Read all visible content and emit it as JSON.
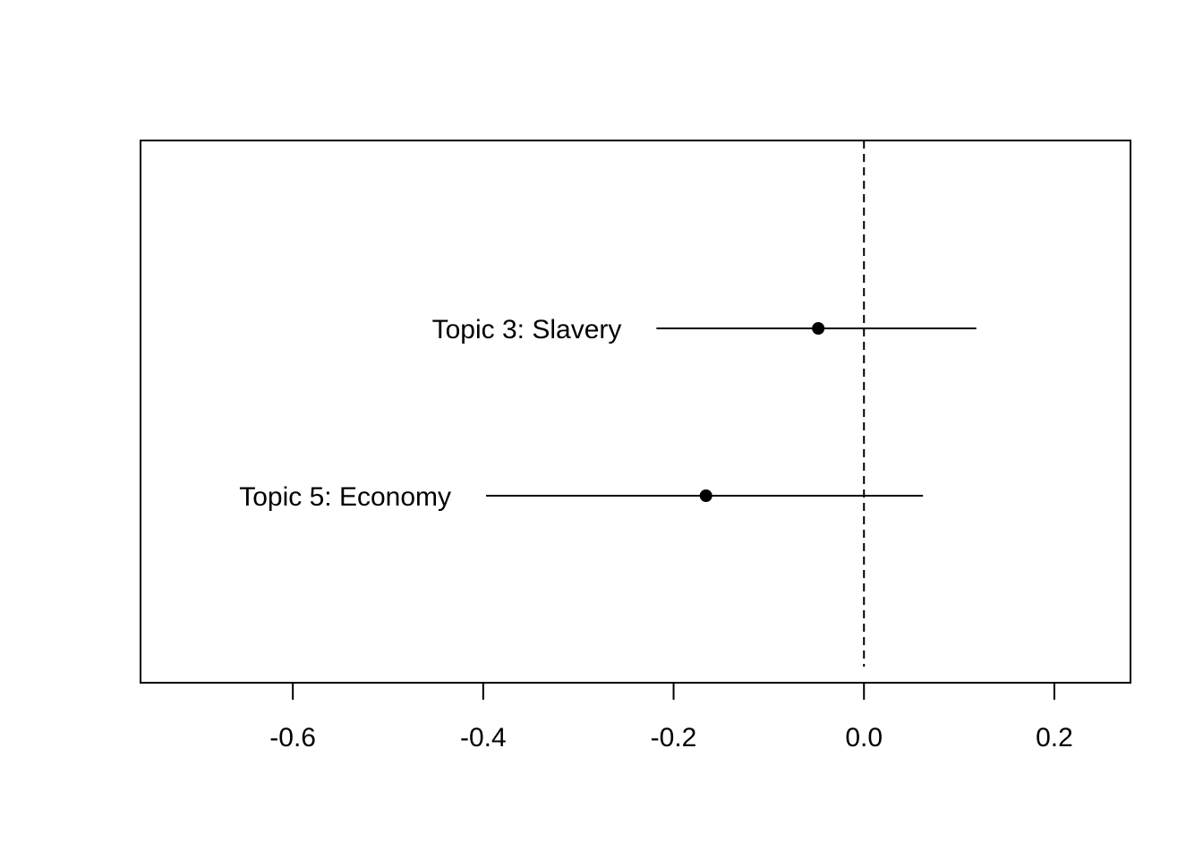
{
  "chart_data": {
    "type": "scatter",
    "subtype": "point-estimate-with-intervals",
    "title": "",
    "xlabel": "",
    "ylabel": "",
    "xlim": [
      -0.76,
      0.28
    ],
    "x_ticks": [
      -0.6,
      -0.4,
      -0.2,
      0.0,
      0.2
    ],
    "x_tick_labels": [
      "-0.6",
      "-0.4",
      "-0.2",
      "0.0",
      "0.2"
    ],
    "reference_line": {
      "x": 0.0,
      "style": "dashed"
    },
    "grid": false,
    "points": [
      {
        "label": "Topic 3: Slavery",
        "estimate": -0.048,
        "ci_lower": -0.218,
        "ci_upper": 0.118
      },
      {
        "label": "Topic 5: Economy",
        "estimate": -0.166,
        "ci_lower": -0.397,
        "ci_upper": 0.062
      }
    ],
    "colors": {
      "marks": "#000000",
      "background": "#ffffff"
    }
  }
}
